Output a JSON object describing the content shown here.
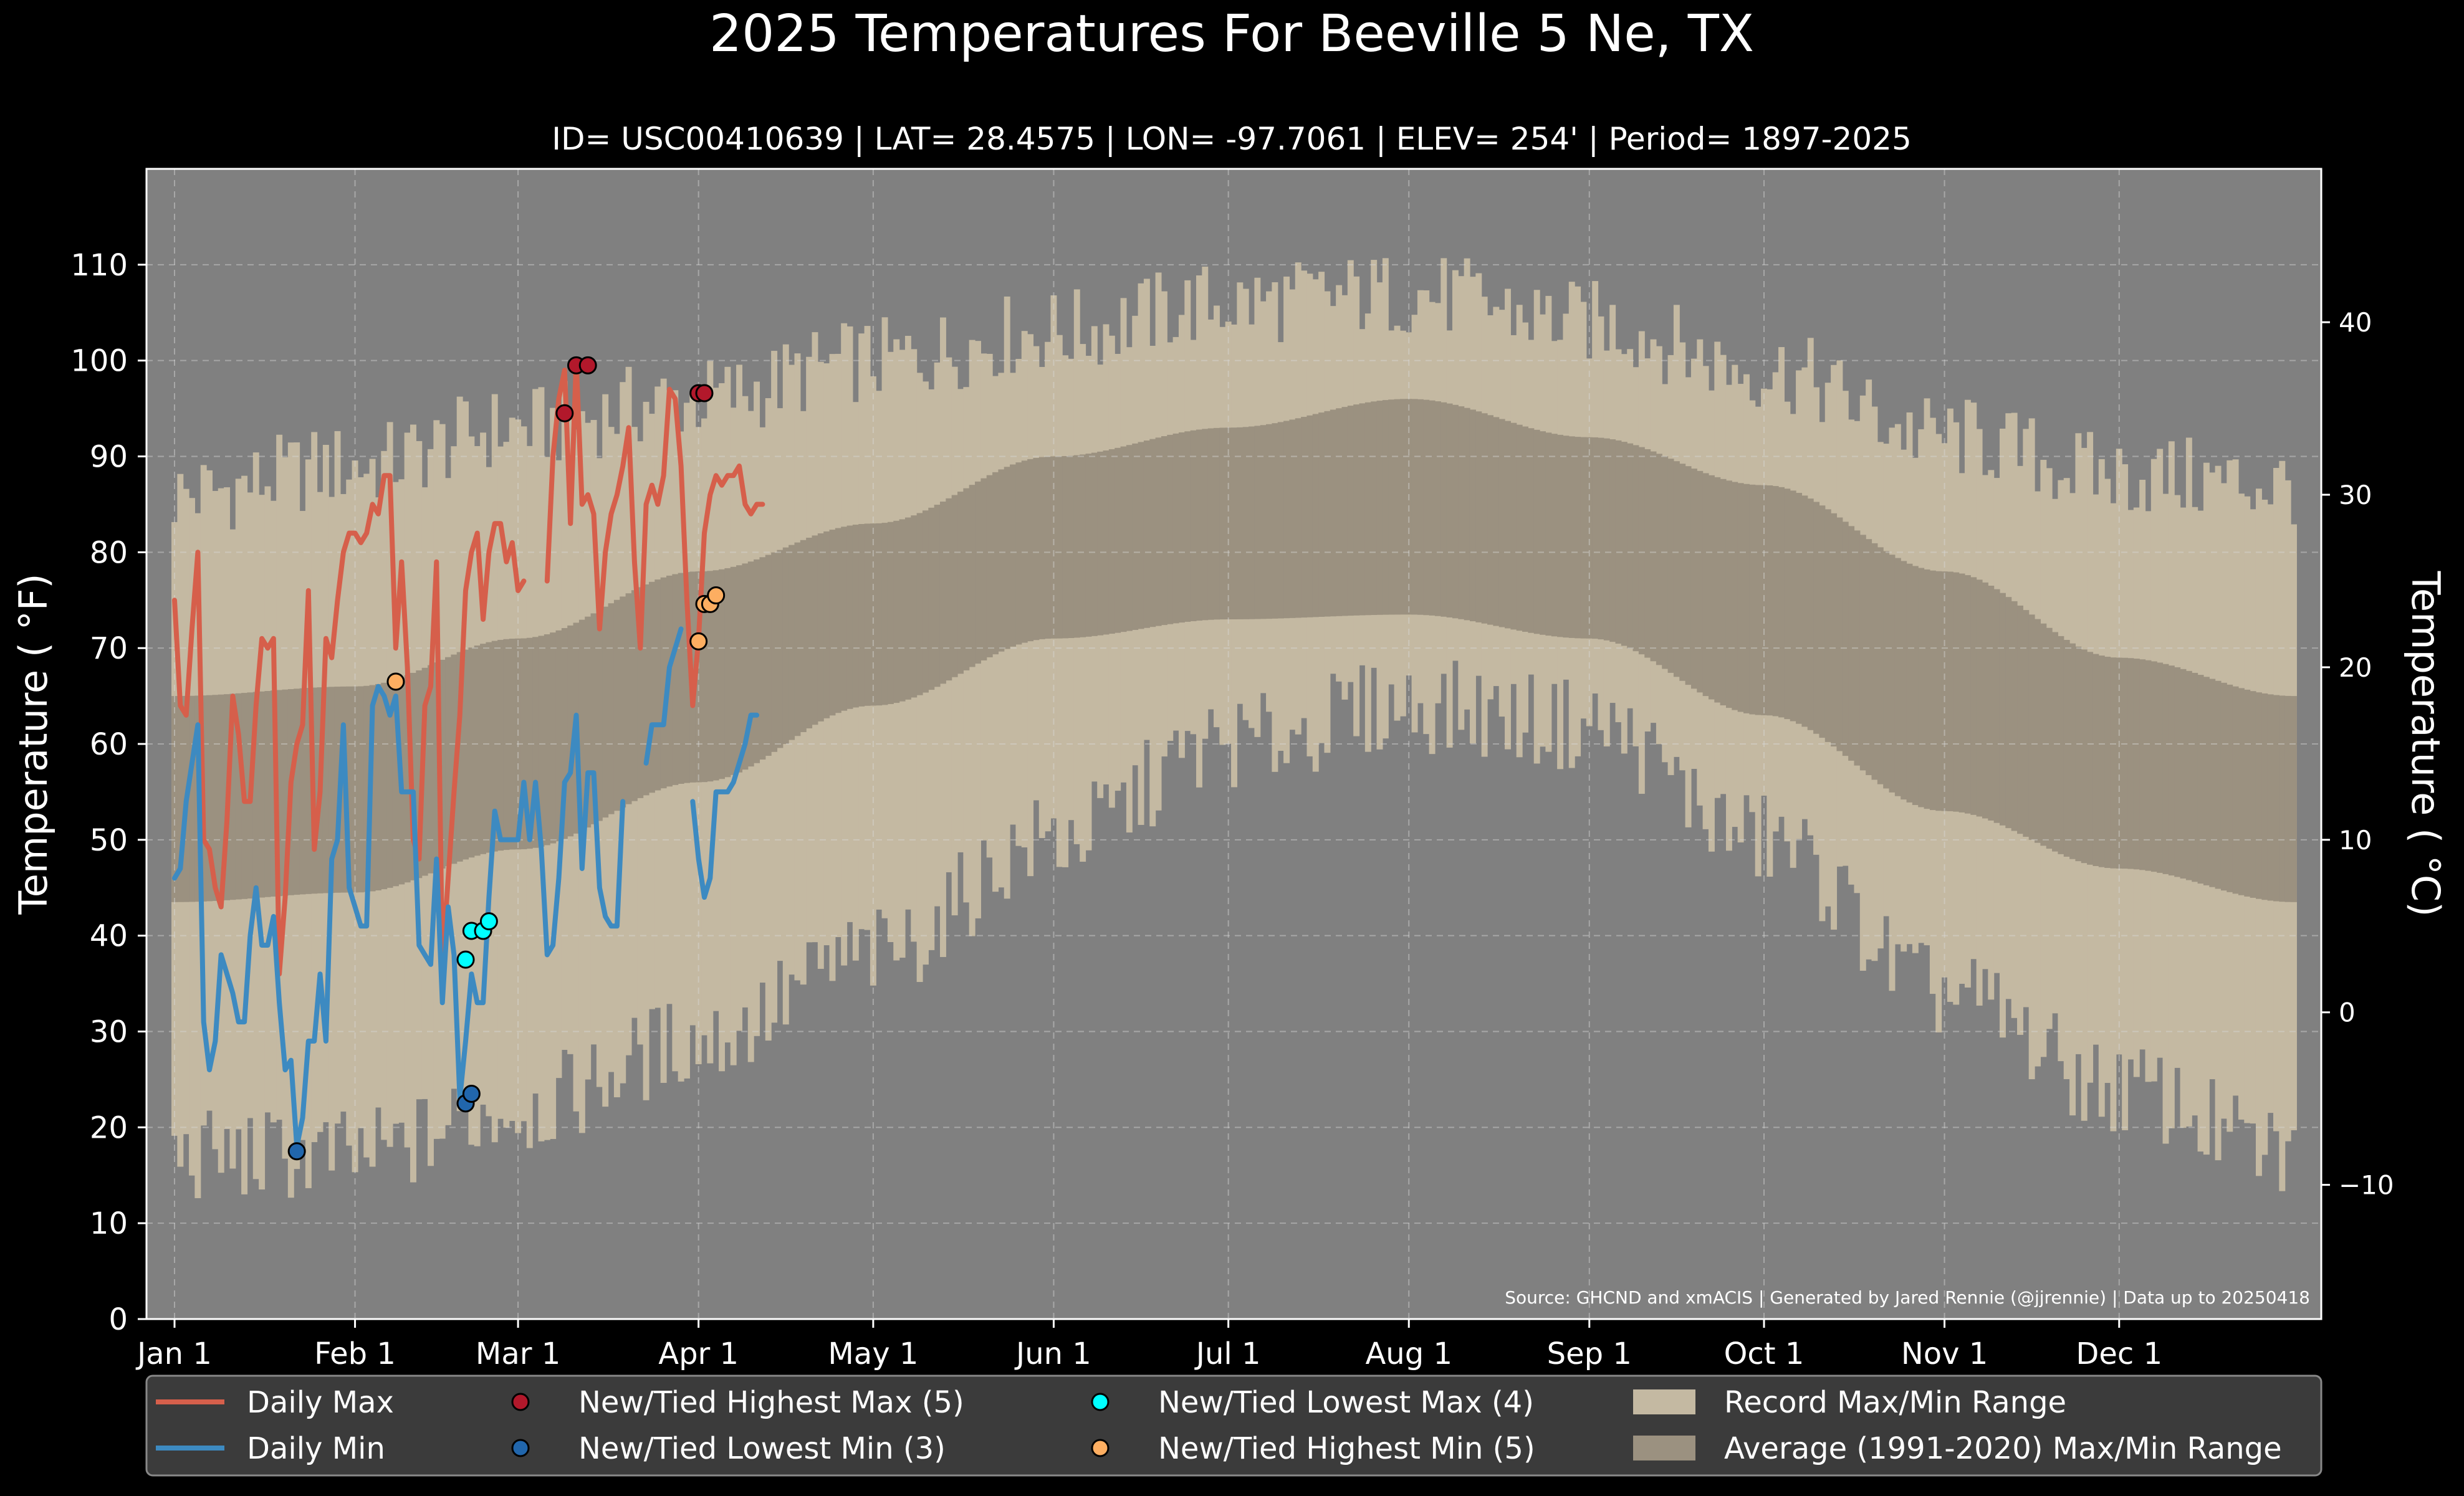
{
  "chart_data": {
    "type": "line",
    "title": "2025 Temperatures For Beeville 5 Ne, TX",
    "subtitle": "ID= USC00410639 | LAT= 28.4575 | LON= -97.7061 | ELEV= 254' | Period= 1897-2025",
    "ylabel": "Temperature ($^\\circ$F)",
    "ylabel_display": "Temperature ( °F)",
    "y2label_display": "Temperature ( °C)",
    "source": "Source: GHCND and xmACIS | Generated by Jared Rennie (@jjrennie) | Data up to 20250418",
    "ylim": [
      0,
      120
    ],
    "y_ticks": [
      0,
      10,
      20,
      30,
      40,
      50,
      60,
      70,
      80,
      90,
      100,
      110
    ],
    "y2_ticks": [
      -10,
      0,
      10,
      20,
      30,
      40
    ],
    "x_range_days": [
      0,
      364
    ],
    "x_ticks": [
      {
        "day": 0,
        "label": "Jan 1"
      },
      {
        "day": 31,
        "label": "Feb 1"
      },
      {
        "day": 59,
        "label": "Mar 1"
      },
      {
        "day": 90,
        "label": "Apr 1"
      },
      {
        "day": 120,
        "label": "May 1"
      },
      {
        "day": 151,
        "label": "Jun 1"
      },
      {
        "day": 181,
        "label": "Jul 1"
      },
      {
        "day": 212,
        "label": "Aug 1"
      },
      {
        "day": 243,
        "label": "Sep 1"
      },
      {
        "day": 273,
        "label": "Oct 1"
      },
      {
        "day": 304,
        "label": "Nov 1"
      },
      {
        "day": 334,
        "label": "Dec 1"
      }
    ],
    "grid": true,
    "legend_position": "bottom",
    "record_anchor_days": [
      0,
      31,
      59,
      90,
      120,
      151,
      181,
      212,
      243,
      273,
      304,
      334,
      364
    ],
    "record_max_anchors": [
      86,
      89,
      93,
      96,
      100,
      103,
      106,
      107,
      104,
      99,
      92,
      88,
      87
    ],
    "record_min_anchors": [
      17,
      17,
      22,
      29,
      38,
      50,
      60,
      64,
      62,
      50,
      34,
      24,
      17
    ],
    "average_band": {
      "max_anchor_days": [
        0,
        31,
        59,
        90,
        120,
        151,
        181,
        212,
        243,
        273,
        304,
        334,
        364
      ],
      "max_anchor_values": [
        65,
        66,
        71,
        78,
        83,
        90,
        93,
        96,
        92,
        87,
        78,
        69,
        65
      ],
      "min_anchor_values": [
        43.5,
        44.5,
        49,
        56,
        64,
        71,
        73,
        73.5,
        71,
        63,
        53,
        47,
        43.5
      ]
    },
    "series": [
      {
        "name": "Daily Max",
        "color": "#d65f4b",
        "x": [
          0,
          1,
          2,
          3,
          4,
          5,
          6,
          7,
          8,
          9,
          10,
          11,
          12,
          13,
          14,
          15,
          16,
          17,
          18,
          19,
          20,
          21,
          22,
          23,
          24,
          25,
          26,
          27,
          28,
          29,
          30,
          31,
          32,
          33,
          34,
          35,
          36,
          37,
          38,
          39,
          40,
          41,
          42,
          43,
          44,
          45,
          46,
          47,
          48,
          49,
          50,
          51,
          52,
          53,
          54,
          55,
          56,
          57,
          58,
          59,
          60,
          61,
          62,
          63,
          64,
          65,
          66,
          67,
          68,
          69,
          70,
          71,
          72,
          73,
          74,
          75,
          76,
          77,
          78,
          79,
          80,
          81,
          82,
          83,
          84,
          85,
          86,
          87,
          88,
          89,
          90,
          91,
          92,
          93,
          94,
          95,
          96,
          97,
          98,
          99,
          100,
          101,
          102,
          103,
          104,
          105,
          106,
          107
        ],
        "y": [
          75,
          64,
          63,
          72,
          80,
          50,
          49,
          45,
          43,
          52,
          65,
          61,
          54,
          54,
          64,
          71,
          70,
          71,
          36,
          44,
          56,
          60,
          62,
          76,
          49,
          55,
          71,
          69,
          75,
          80,
          82,
          82,
          81,
          82,
          85,
          84,
          88,
          88,
          70,
          79,
          68,
          50,
          48,
          64,
          66,
          79,
          37,
          46,
          55,
          63,
          76,
          80,
          82,
          73,
          80,
          83,
          83,
          79,
          81,
          76,
          77,
          null,
          null,
          null,
          77,
          90,
          96,
          99,
          83,
          100,
          85,
          86,
          84,
          72,
          80,
          84,
          86,
          89,
          93,
          79,
          70,
          85,
          87,
          85,
          88,
          97,
          96,
          89,
          75,
          64,
          71,
          82,
          86,
          88,
          87,
          88,
          88,
          89,
          85,
          84,
          85,
          85,
          null,
          null,
          null,
          null,
          null,
          null
        ],
        "y_note": "Daily Max ends mid-April (data up to 20250418)"
      },
      {
        "name": "Daily Min",
        "color": "#3d8ac1",
        "x": [
          0,
          1,
          2,
          3,
          4,
          5,
          6,
          7,
          8,
          9,
          10,
          11,
          12,
          13,
          14,
          15,
          16,
          17,
          18,
          19,
          20,
          21,
          22,
          23,
          24,
          25,
          26,
          27,
          28,
          29,
          30,
          31,
          32,
          33,
          34,
          35,
          36,
          37,
          38,
          39,
          40,
          41,
          42,
          43,
          44,
          45,
          46,
          47,
          48,
          49,
          50,
          51,
          52,
          53,
          54,
          55,
          56,
          57,
          58,
          59,
          60,
          61,
          62,
          63,
          64,
          65,
          66,
          67,
          68,
          69,
          70,
          71,
          72,
          73,
          74,
          75,
          76,
          77,
          78,
          79,
          80,
          81,
          82,
          83,
          84,
          85,
          86,
          87,
          88,
          89,
          90,
          91,
          92,
          93,
          94,
          95,
          96,
          97,
          98,
          99,
          100,
          101,
          102,
          103,
          104,
          105,
          106,
          107
        ],
        "y": [
          46,
          47,
          54,
          58,
          62,
          31,
          26,
          29,
          38,
          36,
          34,
          31,
          31,
          40,
          45,
          39,
          39,
          42,
          33,
          26,
          27,
          18,
          21,
          29,
          29,
          36,
          29,
          48,
          50,
          62,
          45,
          43,
          41,
          41,
          64,
          66,
          65,
          63,
          65,
          55,
          55,
          55,
          39,
          38,
          37,
          48,
          33,
          43,
          38,
          23,
          29,
          36,
          33,
          33,
          44,
          53,
          50,
          50,
          50,
          50,
          56,
          50,
          56,
          49,
          38,
          39,
          46,
          56,
          57,
          63,
          47,
          57,
          57,
          45,
          42,
          41,
          41,
          54,
          null,
          null,
          null,
          58,
          62,
          62,
          62,
          68,
          70,
          72,
          null,
          54,
          48,
          44,
          46,
          55,
          55,
          55,
          56,
          58,
          60,
          63,
          63,
          null,
          null,
          null,
          null,
          null,
          null,
          null
        ],
        "y_note": "gap reproduces the break visible in the line"
      }
    ],
    "markers": [
      {
        "name": "New/Tied Highest Max (5)",
        "face": "#b2182b",
        "points": [
          [
            67,
            94.5
          ],
          [
            69,
            99.5
          ],
          [
            71,
            99.5
          ],
          [
            90,
            96.6
          ],
          [
            91,
            96.6
          ]
        ]
      },
      {
        "name": "New/Tied Lowest Min (3)",
        "face": "#2166ac",
        "points": [
          [
            21,
            17.5
          ],
          [
            50,
            22.5
          ],
          [
            51,
            23.5
          ]
        ]
      },
      {
        "name": "New/Tied Lowest Max (4)",
        "face": "#00ffff",
        "points": [
          [
            50,
            37.5
          ],
          [
            51,
            40.5
          ],
          [
            53,
            40.5
          ],
          [
            54,
            41.5
          ]
        ]
      },
      {
        "name": "New/Tied Highest Min (5)",
        "face": "#fdae61",
        "points": [
          [
            38,
            66.5
          ],
          [
            90,
            70.7
          ],
          [
            91,
            74.6
          ],
          [
            92,
            74.6
          ],
          [
            93,
            75.5
          ]
        ]
      }
    ]
  },
  "legend": [
    {
      "label": "Daily Max",
      "kind": "line",
      "color": "#d65f4b"
    },
    {
      "label": "New/Tied Highest Max (5)",
      "kind": "marker",
      "color": "#b2182b"
    },
    {
      "label": "New/Tied Lowest Max (4)",
      "kind": "marker",
      "color": "#00ffff"
    },
    {
      "label": "Record Max/Min Range",
      "kind": "patch",
      "color": "#c4b9a2"
    },
    {
      "label": "Daily Min",
      "kind": "line",
      "color": "#3d8ac1"
    },
    {
      "label": "New/Tied Lowest Min (3)",
      "kind": "marker",
      "color": "#2166ac"
    },
    {
      "label": "New/Tied Highest Min (5)",
      "kind": "marker",
      "color": "#fdae61"
    },
    {
      "label": "Average (1991-2020) Max/Min Range",
      "kind": "patch",
      "color": "#9b9180"
    }
  ],
  "colors": {
    "figure_bg": "#000000",
    "axes_bg": "#808080",
    "record_range": "#c4b9a2",
    "average_range": "#9b9180",
    "text": "#ffffff",
    "legend_bg": "#3b3b3b"
  }
}
